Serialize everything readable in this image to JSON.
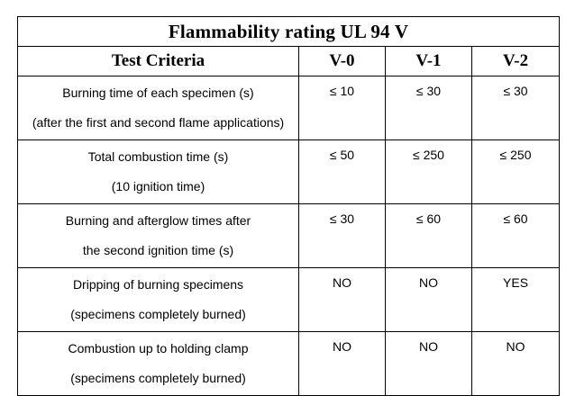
{
  "table": {
    "title": "Flammability rating UL 94 V",
    "headers": {
      "criteria": "Test Criteria",
      "v0": "V-0",
      "v1": "V-1",
      "v2": "V-2"
    },
    "rows": [
      {
        "criteria_line1": "Burning time of each specimen (s)",
        "criteria_line2": "(after the first and second flame applications)",
        "v0": "≤ 10",
        "v1": "≤ 30",
        "v2": "≤ 30"
      },
      {
        "criteria_line1": "Total combustion time (s)",
        "criteria_line2": "(10 ignition time)",
        "v0": "≤ 50",
        "v1": "≤ 250",
        "v2": "≤ 250"
      },
      {
        "criteria_line1": "Burning and afterglow times after",
        "criteria_line2": "the second ignition time (s)",
        "v0": "≤ 30",
        "v1": "≤ 60",
        "v2": "≤ 60"
      },
      {
        "criteria_line1": "Dripping of burning specimens",
        "criteria_line2": "(specimens completely burned)",
        "v0": "NO",
        "v1": "NO",
        "v2": "YES"
      },
      {
        "criteria_line1": "Combustion up to holding clamp",
        "criteria_line2": "(specimens completely burned)",
        "v0": "NO",
        "v1": "NO",
        "v2": "NO"
      }
    ]
  }
}
